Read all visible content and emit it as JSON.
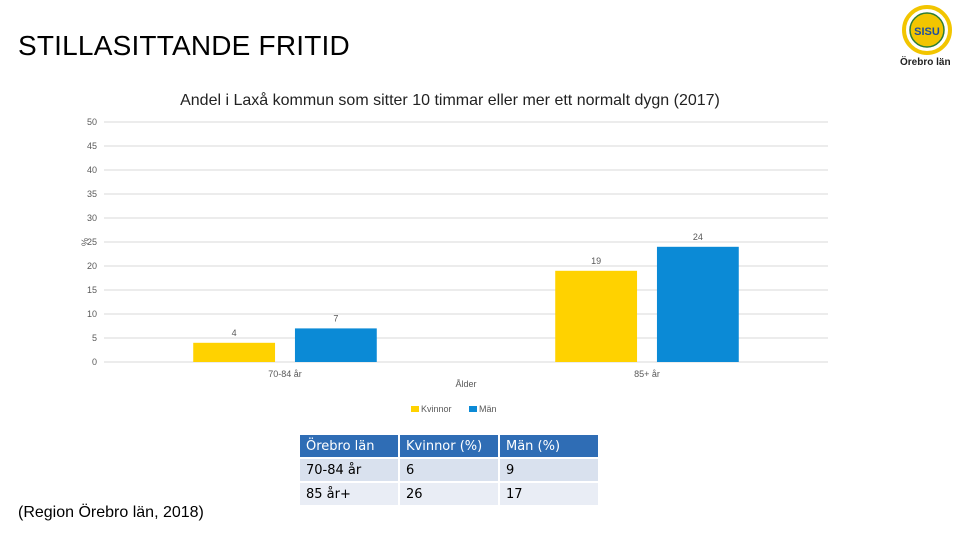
{
  "slide": {
    "title": "STILLASITTANDE FRITID",
    "source": "(Region Örebro län, 2018)"
  },
  "logo": {
    "emblem_text": "SISU",
    "label": "Örebro län",
    "colors": {
      "gold": "#f2c500",
      "green": "#2e7d32",
      "blue": "#1f4e9c"
    }
  },
  "chart_data": {
    "type": "bar",
    "title": "Andel i Laxå kommun som sitter 10 timmar eller mer ett normalt dygn (2017)",
    "xlabel": "Ålder",
    "ylabel": "%",
    "categories": [
      "70-84 år",
      "85+ år"
    ],
    "series": [
      {
        "name": "Kvinnor",
        "values": [
          4,
          19
        ],
        "color": "#ffd200"
      },
      {
        "name": "Män",
        "values": [
          7,
          24
        ],
        "color": "#0b8ad6"
      }
    ],
    "ylim": [
      0,
      50
    ],
    "yticks": [
      0,
      5,
      10,
      15,
      20,
      25,
      30,
      35,
      40,
      45,
      50
    ],
    "grid": true,
    "legend": "bottom"
  },
  "table": {
    "headers": [
      "Örebro län",
      "Kvinnor (%)",
      "Män (%)"
    ],
    "rows": [
      [
        "70-84 år",
        "6",
        "9"
      ],
      [
        "85 år+",
        "26",
        "17"
      ]
    ]
  }
}
